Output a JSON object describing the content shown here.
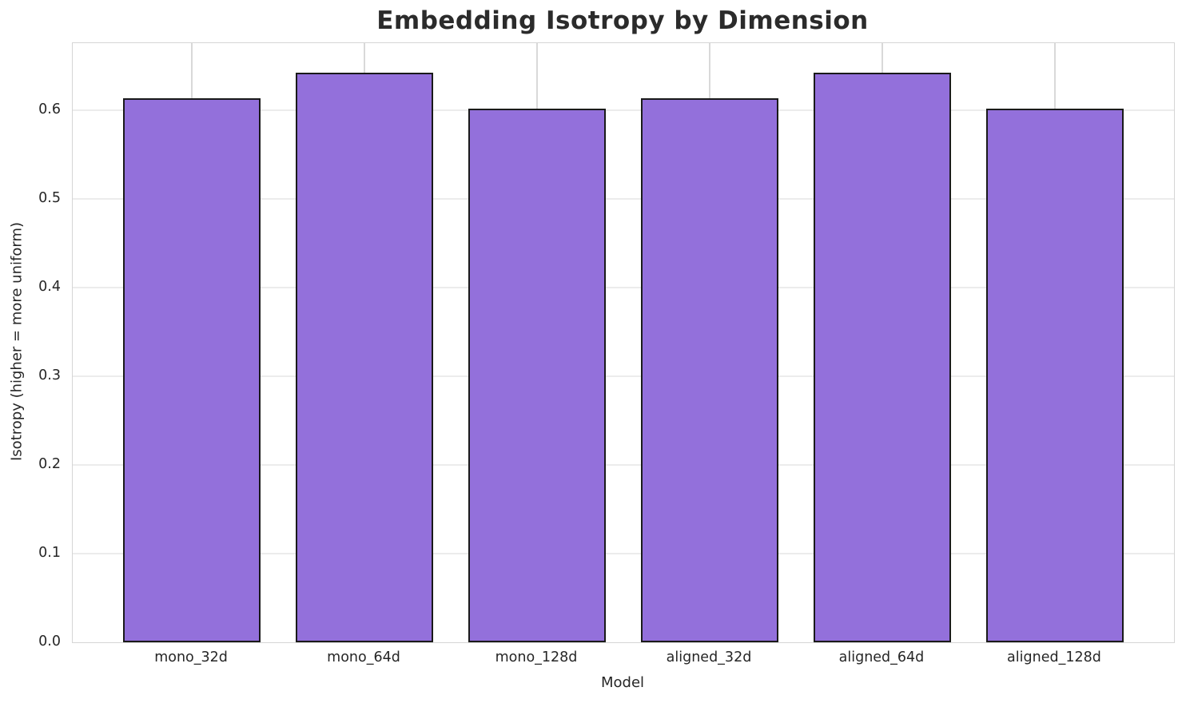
{
  "chart_data": {
    "type": "bar",
    "title": "Embedding Isotropy by Dimension",
    "xlabel": "Model",
    "ylabel": "Isotropy (higher = more uniform)",
    "categories": [
      "mono_32d",
      "mono_64d",
      "mono_128d",
      "aligned_32d",
      "aligned_64d",
      "aligned_128d"
    ],
    "values": [
      0.614,
      0.643,
      0.602,
      0.614,
      0.643,
      0.602
    ],
    "yticks": [
      0.0,
      0.1,
      0.2,
      0.3,
      0.4,
      0.5,
      0.6
    ],
    "ytick_labels": [
      "0.0",
      "0.1",
      "0.2",
      "0.3",
      "0.4",
      "0.5",
      "0.6"
    ],
    "ylim": [
      0,
      0.676
    ],
    "grid": true,
    "legend": "none",
    "bar_color": "#9370DB",
    "bar_edge_color": "#1a1a1a",
    "grid_color_h": "#ececec",
    "grid_color_v": "#d9d9d9",
    "spine_color": "#d5d5d5",
    "text_color": "#262626",
    "background": "#ffffff"
  }
}
